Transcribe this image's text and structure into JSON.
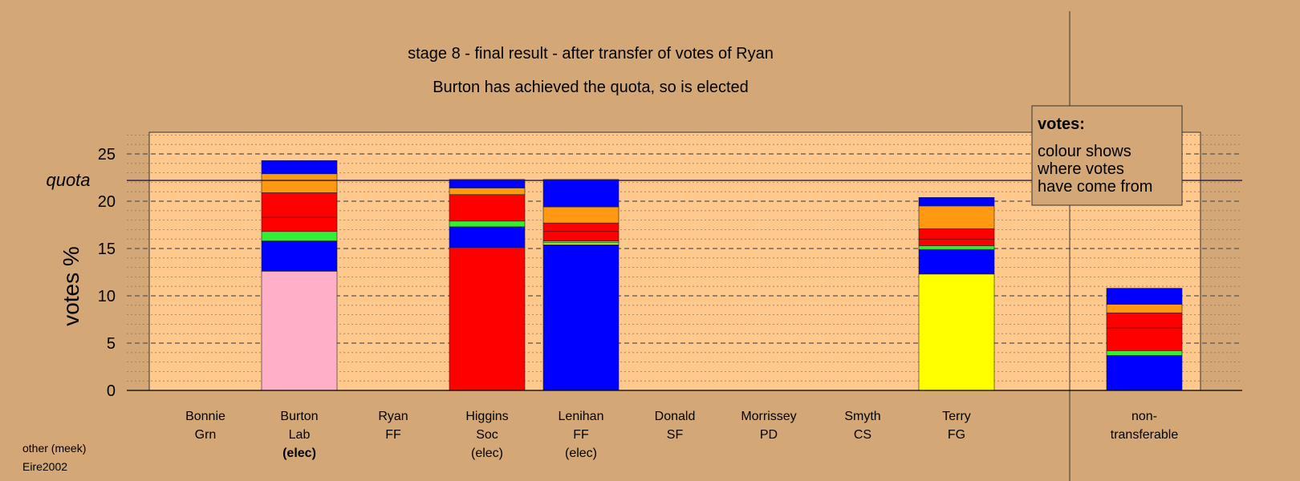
{
  "titles": {
    "stage": "stage 8 - final result - after transfer of votes of Ryan",
    "result": "Burton has achieved the quota, so is elected"
  },
  "legend": {
    "heading": "votes:",
    "lines": [
      "colour shows",
      "where votes",
      "have come from"
    ]
  },
  "footer": {
    "line1": "other (meek)",
    "line2": "Eire2002"
  },
  "colors": {
    "background": "#D4A876",
    "plot_area": "#FFC98E",
    "pink": "#FFB0C8",
    "blue": "#0000FF",
    "green": "#33EE33",
    "red": "#FF0000",
    "orange": "#FF9911",
    "yellow": "#FFFF00"
  },
  "chart_data": {
    "type": "bar",
    "stacked": true,
    "ylabel": "votes %",
    "ylim": [
      0,
      27
    ],
    "yticks": [
      0,
      5,
      10,
      15,
      20,
      25
    ],
    "quota": {
      "label": "quota",
      "value": 22.2
    },
    "grid": true,
    "legend_position": "top-right",
    "candidates": [
      {
        "name": "Bonnie",
        "party": "Grn",
        "status": "",
        "segments": []
      },
      {
        "name": "Burton",
        "party": "Lab",
        "status": "(elec)",
        "segments": [
          {
            "color": "pink",
            "value": 12.6
          },
          {
            "color": "blue",
            "value": 3.2
          },
          {
            "color": "green",
            "value": 1.0
          },
          {
            "color": "red",
            "value": 1.5
          },
          {
            "color": "red",
            "value": 2.6
          },
          {
            "color": "orange",
            "value": 2.0
          },
          {
            "color": "blue",
            "value": 1.4
          }
        ]
      },
      {
        "name": "Ryan",
        "party": "FF",
        "status": "",
        "segments": []
      },
      {
        "name": "Higgins",
        "party": "Soc",
        "status": "(elec)",
        "segments": [
          {
            "color": "red",
            "value": 15.1
          },
          {
            "color": "blue",
            "value": 2.2
          },
          {
            "color": "green",
            "value": 0.6
          },
          {
            "color": "red",
            "value": 2.8
          },
          {
            "color": "orange",
            "value": 0.7
          },
          {
            "color": "blue",
            "value": 0.9
          }
        ]
      },
      {
        "name": "Lenihan",
        "party": "FF",
        "status": "(elec)",
        "segments": [
          {
            "color": "blue",
            "value": 15.4
          },
          {
            "color": "yellow",
            "value": 0.2
          },
          {
            "color": "green",
            "value": 0.2
          },
          {
            "color": "red",
            "value": 1.0
          },
          {
            "color": "red",
            "value": 0.9
          },
          {
            "color": "orange",
            "value": 1.7
          },
          {
            "color": "blue",
            "value": 2.9
          }
        ]
      },
      {
        "name": "Donald",
        "party": "SF",
        "status": "",
        "segments": []
      },
      {
        "name": "Morrissey",
        "party": "PD",
        "status": "",
        "segments": []
      },
      {
        "name": "Smyth",
        "party": "CS",
        "status": "",
        "segments": []
      },
      {
        "name": "Terry",
        "party": "FG",
        "status": "",
        "segments": [
          {
            "color": "yellow",
            "value": 12.3
          },
          {
            "color": "blue",
            "value": 2.6
          },
          {
            "color": "green",
            "value": 0.4
          },
          {
            "color": "red",
            "value": 0.7
          },
          {
            "color": "red",
            "value": 1.1
          },
          {
            "color": "orange",
            "value": 2.4
          },
          {
            "color": "blue",
            "value": 0.9
          }
        ]
      }
    ],
    "non_transferable": {
      "label_line1": "non-",
      "label_line2": "transferable",
      "segments": [
        {
          "color": "blue",
          "value": 3.7
        },
        {
          "color": "green",
          "value": 0.5
        },
        {
          "color": "red",
          "value": 2.4
        },
        {
          "color": "red",
          "value": 1.6
        },
        {
          "color": "orange",
          "value": 0.9
        },
        {
          "color": "blue",
          "value": 1.7
        }
      ]
    }
  }
}
